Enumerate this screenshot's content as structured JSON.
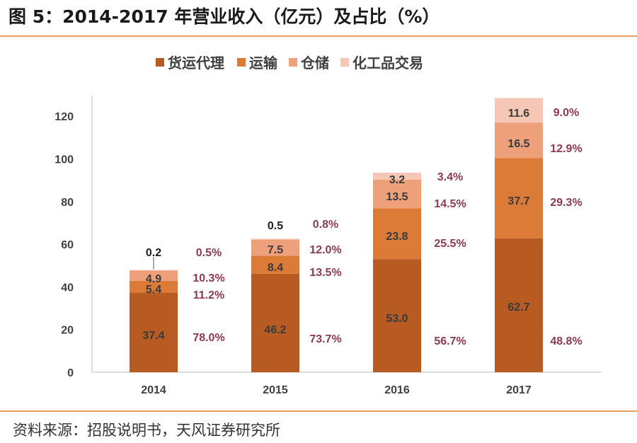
{
  "header": {
    "title": "图 5：2014-2017 年营业收入（亿元）及占比（%）"
  },
  "footer": {
    "source": "资料来源：招股说明书，天风证券研究所"
  },
  "colors": {
    "rule": "#e8a060",
    "value_label": "#3a3a3a",
    "pct_label": "#8b3a52",
    "axis_text": "#404040"
  },
  "chart_data": {
    "type": "bar",
    "stacked": true,
    "title": "2014-2017 年营业收入（亿元）及占比（%）",
    "xlabel": "",
    "ylabel": "",
    "categories": [
      "2014",
      "2015",
      "2016",
      "2017"
    ],
    "ylim": [
      0,
      128
    ],
    "yticks": [
      0,
      20,
      40,
      60,
      80,
      100,
      120
    ],
    "legend_position": "top-center",
    "series": [
      {
        "name": "货运代理",
        "color": "#b85b22",
        "values": [
          37.4,
          46.2,
          53.0,
          62.7
        ],
        "value_labels": [
          "37.4",
          "46.2",
          "53.0",
          "62.7"
        ],
        "percent_labels": [
          "78.0%",
          "73.7%",
          "56.7%",
          "48.8%"
        ]
      },
      {
        "name": "运输",
        "color": "#dc7a38",
        "values": [
          5.4,
          8.4,
          23.8,
          37.7
        ],
        "value_labels": [
          "5.4",
          "8.4",
          "23.8",
          "37.7"
        ],
        "percent_labels": [
          "11.2%",
          "13.5%",
          "25.5%",
          "29.3%"
        ]
      },
      {
        "name": "仓储",
        "color": "#eda07a",
        "values": [
          4.9,
          7.5,
          13.5,
          16.5
        ],
        "value_labels": [
          "4.9",
          "7.5",
          "13.5",
          "16.5"
        ],
        "percent_labels": [
          "10.3%",
          "12.0%",
          "14.5%",
          "12.9%"
        ]
      },
      {
        "name": "化工品交易",
        "color": "#f6c7b4",
        "values": [
          0.2,
          0.5,
          3.2,
          11.6
        ],
        "value_labels": [
          "0.2",
          "0.5",
          "3.2",
          "11.6"
        ],
        "percent_labels": [
          "0.5%",
          "0.8%",
          "3.4%",
          "9.0%"
        ]
      }
    ]
  }
}
